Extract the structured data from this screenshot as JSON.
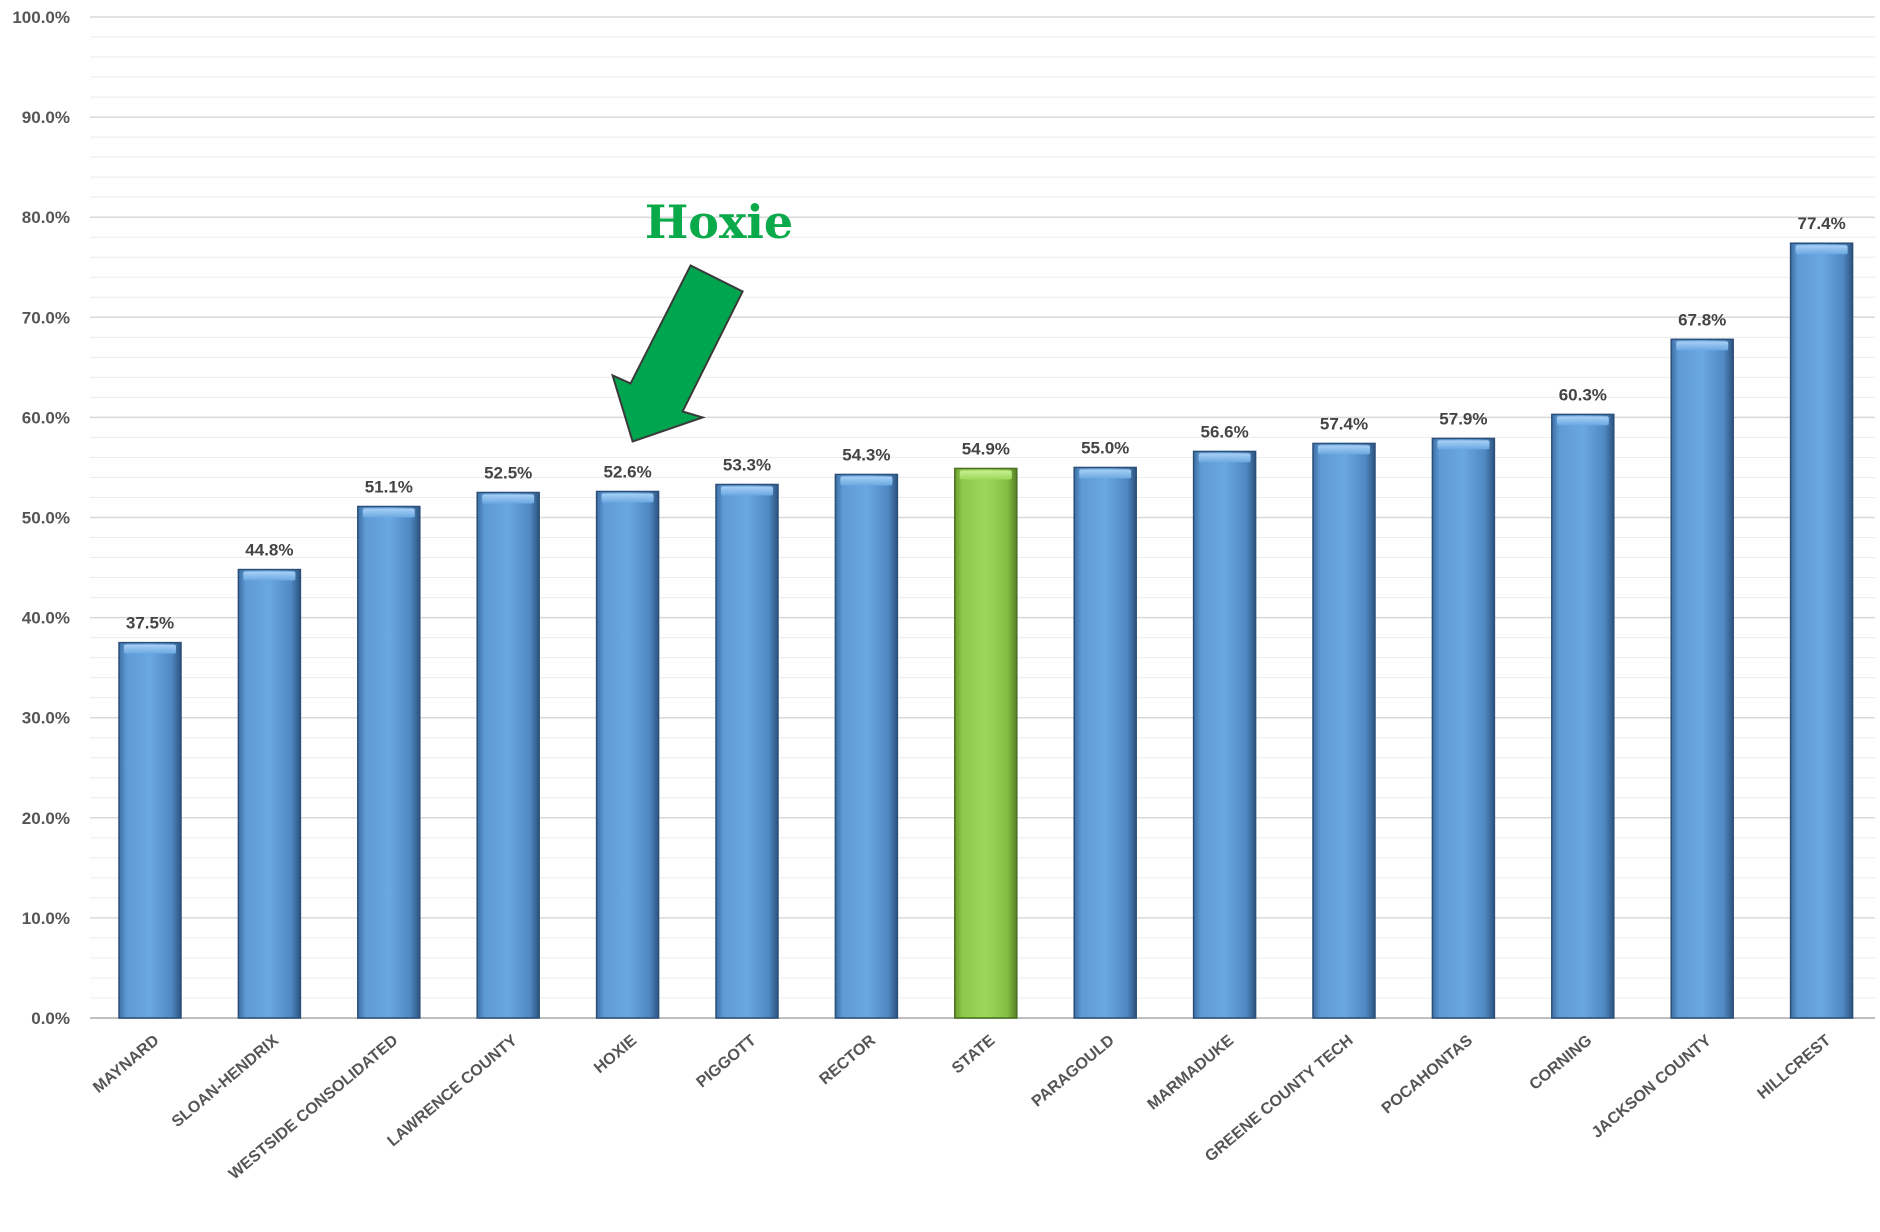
{
  "chart_data": {
    "type": "bar",
    "title": "",
    "xlabel": "",
    "ylabel": "",
    "ylim": [
      0,
      100
    ],
    "y_ticks": [
      "0.0%",
      "10.0%",
      "20.0%",
      "30.0%",
      "40.0%",
      "50.0%",
      "60.0%",
      "70.0%",
      "80.0%",
      "90.0%",
      "100.0%"
    ],
    "y_tick_values": [
      0,
      10,
      20,
      30,
      40,
      50,
      60,
      70,
      80,
      90,
      100
    ],
    "grid": true,
    "categories": [
      "MAYNARD",
      "SLOAN-HENDRIX",
      "WESTSIDE CONSOLIDATED",
      "LAWRENCE COUNTY",
      "HOXIE",
      "PIGGOTT",
      "RECTOR",
      "STATE",
      "PARAGOULD",
      "MARMADUKE",
      "GREENE COUNTY TECH",
      "POCAHONTAS",
      "CORNING",
      "JACKSON COUNTY",
      "HILLCREST"
    ],
    "values": [
      37.5,
      44.8,
      51.1,
      52.5,
      52.6,
      53.3,
      54.3,
      54.9,
      55.0,
      56.6,
      57.4,
      57.9,
      60.3,
      67.8,
      77.4
    ],
    "value_labels": [
      "37.5%",
      "44.8%",
      "51.1%",
      "52.5%",
      "52.6%",
      "53.3%",
      "54.3%",
      "54.9%",
      "55.0%",
      "56.6%",
      "57.4%",
      "57.9%",
      "60.3%",
      "67.8%",
      "77.4%"
    ],
    "bar_color": "#5b9bd5",
    "highlight_category": "STATE",
    "highlight_color": "#92d050",
    "annotation": {
      "text": "Hoxie",
      "target_category": "HOXIE",
      "color": "#00a64f"
    }
  }
}
